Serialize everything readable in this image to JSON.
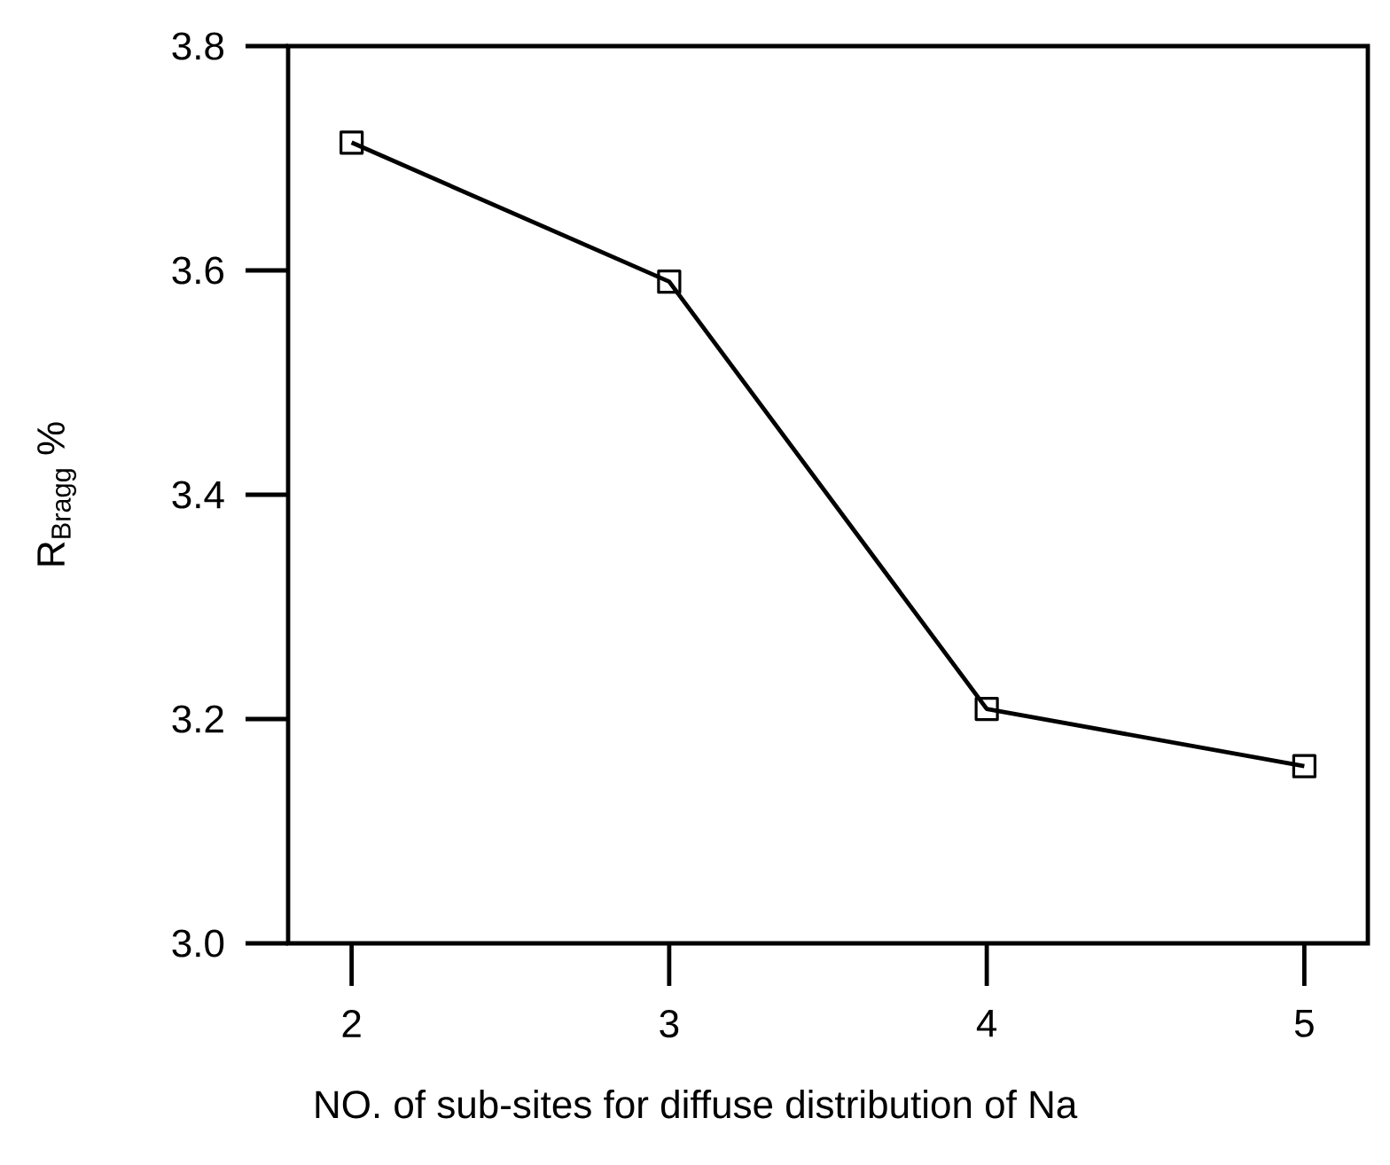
{
  "chart_data": {
    "type": "line",
    "xlabel": "NO. of sub-sites for diffuse distribution of Na",
    "ylabel": "R$_{Bragg}$ %",
    "x": [
      2,
      3,
      4,
      5
    ],
    "series": [
      {
        "color": "#000000",
        "values": [
          3.714,
          3.59,
          3.209,
          3.158
        ]
      }
    ],
    "xlim": [
      1.8,
      5.2
    ],
    "ylim": [
      3.0,
      3.8
    ],
    "xticks": [
      2,
      3,
      4,
      5
    ],
    "yticks": [
      {
        "value": 3,
        "label": "3.0"
      },
      3.2,
      3.4,
      3.6,
      3.8
    ],
    "marker": "square",
    "line_style": "solid",
    "grid": false
  }
}
